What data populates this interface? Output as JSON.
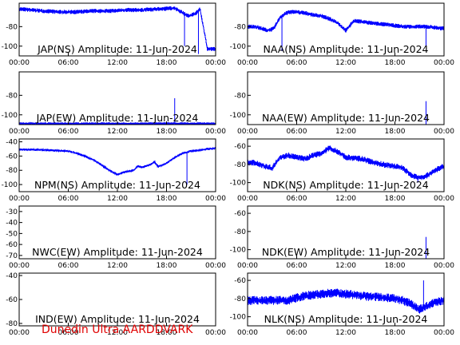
{
  "footer": "Dunedin Ultra AARDDVARK",
  "colors": {
    "signal": "#0000ff",
    "axis": "#000000",
    "footer": "#e00000"
  },
  "chart_data": [
    {
      "type": "line",
      "title": "JAP(NS) Amplitude: 11-Jun-2024",
      "x_ticks": [
        "00:00",
        "06:00",
        "12:00",
        "18:00",
        "00:00"
      ],
      "yticks": [
        -80,
        -100
      ],
      "ylim": [
        -110,
        -56
      ],
      "noise": 2,
      "series": [
        {
          "x": [
            0,
            1.5,
            3,
            5,
            7,
            9,
            11,
            13,
            15,
            17,
            19,
            20,
            20.6,
            21.5,
            22.1,
            23,
            24
          ],
          "values": [
            -62,
            -63,
            -64,
            -65,
            -65,
            -64,
            -64,
            -63,
            -63,
            -62,
            -61,
            -66,
            -69,
            -67,
            -62,
            -103,
            -103
          ]
        }
      ],
      "spikes": [
        {
          "x": 20.2,
          "to": -100
        },
        {
          "x": 21.9,
          "to": -108
        }
      ]
    },
    {
      "type": "line",
      "title": "NAA(NS) Amplitude: 11-Jun-2024",
      "x_ticks": [
        "00:00",
        "06:00",
        "12:00",
        "18:00",
        "00:00"
      ],
      "yticks": [
        -80,
        -100
      ],
      "ylim": [
        -110,
        -56
      ],
      "noise": 2,
      "series": [
        {
          "x": [
            0,
            1,
            2.5,
            3.2,
            4,
            5,
            6,
            7,
            8,
            9,
            10,
            11,
            12,
            13,
            14,
            15,
            16,
            17,
            18,
            19,
            20,
            21,
            22,
            23,
            24
          ],
          "values": [
            -80,
            -80,
            -84,
            -82,
            -70,
            -65,
            -65,
            -66,
            -68,
            -69,
            -72,
            -76,
            -84,
            -74,
            -75,
            -76,
            -77,
            -78,
            -79,
            -80,
            -80,
            -80,
            -80,
            -81,
            -82
          ]
        }
      ],
      "spikes": [
        {
          "x": 4.2,
          "to": -105
        },
        {
          "x": 21.8,
          "to": -100
        }
      ]
    },
    {
      "type": "line",
      "title": "JAP(EW) Amplitude: 11-Jun-2024",
      "x_ticks": [
        "00:00",
        "06:00",
        "12:00",
        "18:00",
        "00:00"
      ],
      "yticks": [
        -80,
        -100
      ],
      "ylim": [
        -110,
        -56
      ],
      "noise": 1.2,
      "series": [
        {
          "x": [
            0,
            24
          ],
          "values": [
            -109,
            -109
          ]
        }
      ],
      "spikes": [
        {
          "x": 19,
          "to": -83
        }
      ]
    },
    {
      "type": "line",
      "title": "NAA(EW) Amplitude: 11-Jun-2024",
      "x_ticks": [
        "00:00",
        "06:00",
        "12:00",
        "18:00",
        "00:00"
      ],
      "yticks": [
        -80,
        -100
      ],
      "ylim": [
        -110,
        -56
      ],
      "noise": 0,
      "series": [],
      "spikes": [
        {
          "x": 21.8,
          "to": -86
        }
      ]
    },
    {
      "type": "line",
      "title": "NPM(NS) Amplitude: 11-Jun-2024",
      "x_ticks": [
        "00:00",
        "06:00",
        "12:00",
        "18:00",
        "00:00"
      ],
      "yticks": [
        -40,
        -60,
        -80,
        -100
      ],
      "ylim": [
        -110,
        -36
      ],
      "noise": 1.5,
      "series": [
        {
          "x": [
            0,
            2,
            4,
            6,
            7,
            8,
            9,
            10,
            11,
            12,
            13,
            14,
            14.5,
            15,
            16,
            16.5,
            17,
            18,
            19,
            20,
            21,
            22,
            23,
            24
          ],
          "values": [
            -51,
            -51,
            -52,
            -53,
            -56,
            -60,
            -65,
            -72,
            -80,
            -86,
            -82,
            -80,
            -74,
            -76,
            -72,
            -68,
            -75,
            -70,
            -62,
            -56,
            -53,
            -52,
            -50,
            -49
          ]
        }
      ],
      "spikes": [
        {
          "x": 20.5,
          "to": -100
        }
      ]
    },
    {
      "type": "line",
      "title": "NDK(NS) Amplitude: 11-Jun-2024",
      "x_ticks": [
        "00:00",
        "06:00",
        "12:00",
        "18:00",
        "00:00"
      ],
      "yticks": [
        -60,
        -80,
        -100
      ],
      "ylim": [
        -110,
        -52
      ],
      "noise": 3,
      "series": [
        {
          "x": [
            0,
            1,
            2,
            3,
            4,
            5,
            6,
            7,
            8,
            9,
            10,
            11,
            12,
            13,
            14,
            15,
            16,
            17,
            18,
            19,
            20,
            21,
            22,
            23,
            24
          ],
          "values": [
            -78,
            -78,
            -82,
            -84,
            -72,
            -70,
            -72,
            -74,
            -70,
            -68,
            -62,
            -66,
            -72,
            -73,
            -74,
            -77,
            -79,
            -81,
            -82,
            -84,
            -92,
            -95,
            -92,
            -86,
            -82
          ]
        }
      ],
      "spikes": [
        {
          "x": 20.8,
          "to": -100
        }
      ]
    },
    {
      "type": "line",
      "title": "NWC(EW) Amplitude: 11-Jun-2024",
      "x_ticks": [
        "00:00",
        "06:00",
        "12:00",
        "18:00",
        "00:00"
      ],
      "yticks": [
        -30,
        -40,
        -50,
        -60,
        -70
      ],
      "ylim": [
        -73,
        -25
      ],
      "noise": 0,
      "series": [],
      "spikes": []
    },
    {
      "type": "line",
      "title": "NDK(EW) Amplitude: 11-Jun-2024",
      "x_ticks": [
        "00:00",
        "06:00",
        "12:00",
        "18:00",
        "00:00"
      ],
      "yticks": [
        -60,
        -80,
        -100
      ],
      "ylim": [
        -110,
        -52
      ],
      "noise": 0,
      "series": [],
      "spikes": [
        {
          "x": 21.8,
          "to": -86
        }
      ]
    },
    {
      "type": "line",
      "title": "IND(EW) Amplitude: 11-Jun-2024",
      "x_ticks": [
        "00:00",
        "06:00",
        "12:00",
        "18:00",
        "00:00"
      ],
      "yticks": [
        -40,
        -60,
        -80
      ],
      "ylim": [
        -82,
        -38
      ],
      "noise": 0,
      "series": [],
      "spikes": []
    },
    {
      "type": "line",
      "title": "NLK(NS) Amplitude: 11-Jun-2024",
      "x_ticks": [
        "00:00",
        "06:00",
        "12:00",
        "18:00",
        "00:00"
      ],
      "yticks": [
        -60,
        -80,
        -100
      ],
      "ylim": [
        -110,
        -52
      ],
      "noise": 4.5,
      "series": [
        {
          "x": [
            0,
            2,
            3,
            4,
            5,
            6,
            7,
            8,
            9,
            10,
            11,
            12,
            13,
            14,
            15,
            16,
            17,
            18,
            19,
            20,
            21,
            22,
            23,
            24
          ],
          "values": [
            -82,
            -82,
            -82,
            -82,
            -82,
            -79,
            -77,
            -76,
            -75,
            -74,
            -74,
            -75,
            -76,
            -77,
            -78,
            -78,
            -79,
            -80,
            -82,
            -86,
            -92,
            -88,
            -84,
            -82
          ]
        }
      ],
      "spikes": [
        {
          "x": 21.5,
          "to": -60
        }
      ]
    }
  ]
}
